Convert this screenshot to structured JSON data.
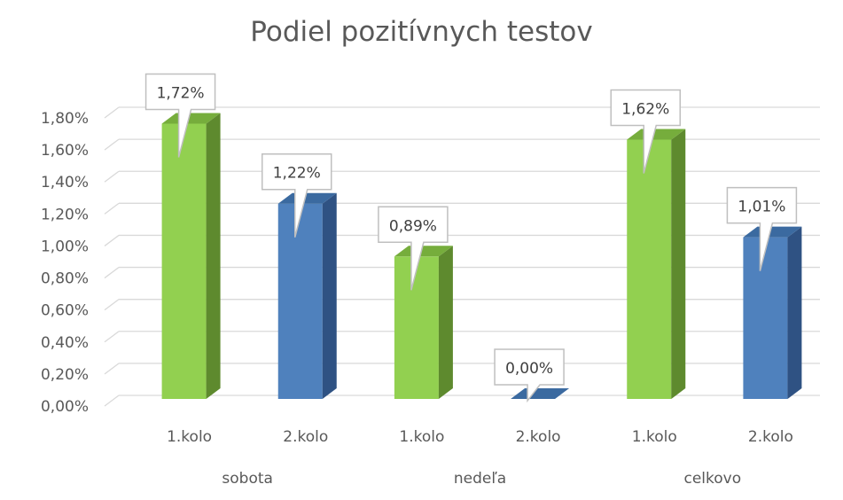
{
  "chart_data": {
    "type": "bar",
    "title": "Podiel pozitívnych testov",
    "groups": [
      "sobota",
      "nedeľa",
      "celkovo"
    ],
    "categories": [
      "1.kolo",
      "2.kolo",
      "1.kolo",
      "2.kolo",
      "1.kolo",
      "2.kolo"
    ],
    "values": [
      1.72,
      1.22,
      0.89,
      0.0,
      1.62,
      1.01
    ],
    "data_labels": [
      "1,72%",
      "1,22%",
      "0,89%",
      "0,00%",
      "1,62%",
      "1,01%"
    ],
    "y_ticks": [
      "0,00%",
      "0,20%",
      "0,40%",
      "0,60%",
      "0,80%",
      "1,00%",
      "1,20%",
      "1,40%",
      "1,60%",
      "1,80%"
    ],
    "ylim": [
      0,
      1.8
    ],
    "grid": true,
    "legend": false,
    "colors": {
      "kolo1_front": "#92d050",
      "kolo1_side": "#5e8a2e",
      "kolo1_top": "#76ad3c",
      "kolo2_front": "#4f81bd",
      "kolo2_side": "#2f5283",
      "kolo2_top": "#3b6aa0",
      "grid": "#d9d9d9",
      "text": "#595959"
    }
  }
}
